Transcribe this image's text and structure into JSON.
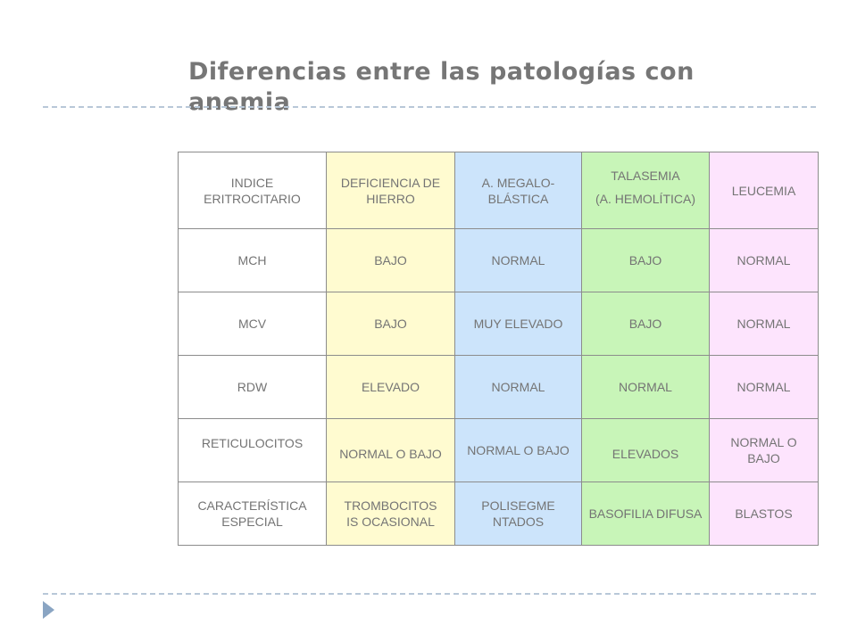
{
  "slide": {
    "title": "Diferencias entre las patologías con anemia"
  },
  "table": {
    "header": [
      {
        "label": "INDICE ERITROCITARIO"
      },
      {
        "label": "DEFICIENCIA DE HIERRO"
      },
      {
        "label": "A. MEGALO-BLÁSTICA"
      },
      {
        "label_line1": "TALASEMIA",
        "label_line2": "(A. HEMOLÍTICA)"
      },
      {
        "label": "LEUCEMIA"
      }
    ],
    "rows": [
      {
        "cells": [
          "MCH",
          "BAJO",
          "NORMAL",
          "BAJO",
          "NORMAL"
        ]
      },
      {
        "cells": [
          "MCV",
          "BAJO",
          "MUY ELEVADO",
          "BAJO",
          "NORMAL"
        ]
      },
      {
        "cells": [
          "RDW",
          "ELEVADO",
          "NORMAL",
          "NORMAL",
          "NORMAL"
        ]
      },
      {
        "cells": [
          "RETICULOCITOS",
          "NORMAL O BAJO",
          "NORMAL O BAJO",
          "ELEVADOS",
          "NORMAL O BAJO"
        ]
      },
      {
        "cells": [
          "CARACTERÍSTICA ESPECIAL",
          "TROMBOCITOSIS OCASIONAL",
          "POLISEGMENTADOS",
          "BASOFILIA DIFUSA",
          "BLASTOS"
        ]
      }
    ]
  },
  "colors": {
    "title": "#767676",
    "text": "#747474",
    "col_index": "#ffffff",
    "col_hierro": "#fffbd0",
    "col_megaloblastica": "#cce4fb",
    "col_talasemia": "#c8f5b8",
    "col_leucemia": "#fde4fd",
    "rule": "#b8c8d8",
    "marker": "#8aa5c3"
  },
  "icons": {
    "slide_marker": "triangle-right-icon"
  }
}
